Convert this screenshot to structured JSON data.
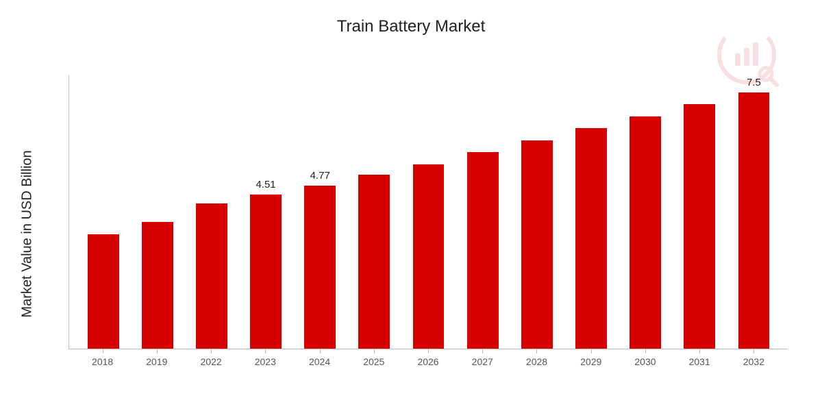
{
  "chart": {
    "type": "bar",
    "title": "Train Battery Market",
    "ylabel": "Market Value in USD Billion",
    "title_fontsize": 24,
    "ylabel_fontsize": 20,
    "xtick_fontsize": 14,
    "value_label_fontsize": 15,
    "background_color": "#ffffff",
    "axis_color": "#bdbdbd",
    "bar_color": "#d60000",
    "text_color": "#222222",
    "xtick_color": "#555555",
    "ymax": 8.0,
    "bar_width_pct": 58,
    "categories": [
      "2018",
      "2019",
      "2022",
      "2023",
      "2024",
      "2025",
      "2026",
      "2027",
      "2028",
      "2029",
      "2030",
      "2031",
      "2032"
    ],
    "values": [
      3.35,
      3.7,
      4.25,
      4.51,
      4.77,
      5.1,
      5.4,
      5.75,
      6.1,
      6.45,
      6.8,
      7.15,
      7.5
    ],
    "value_labels": {
      "2023": "4.51",
      "2024": "4.77",
      "2032": "7.5"
    },
    "watermark": {
      "color": "#d60000",
      "opacity": 0.12
    }
  }
}
